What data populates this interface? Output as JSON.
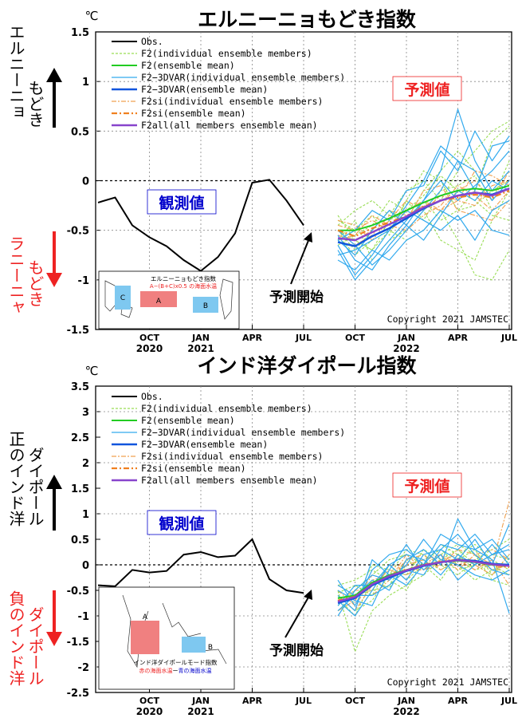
{
  "charts": [
    {
      "title": "エルニーニョもどき指数",
      "unit": "℃",
      "y_ticks": [
        "1.5",
        "1",
        "0.5",
        "0",
        "-0.5",
        "-1",
        "-1.5"
      ],
      "x_ticks": [
        {
          "label": "OCT",
          "year": "2020"
        },
        {
          "label": "JAN",
          "year": "2021"
        },
        {
          "label": "APR",
          "year": ""
        },
        {
          "label": "JUL",
          "year": ""
        },
        {
          "label": "OCT",
          "year": ""
        },
        {
          "label": "JAN",
          "year": "2022"
        },
        {
          "label": "APR",
          "year": ""
        },
        {
          "label": "JUL",
          "year": ""
        }
      ],
      "side_label_positive": "エルニーニョ もどき",
      "side_label_negative": "ラニーニャ もどき",
      "observed_label": "観測値",
      "forecast_label": "予測値",
      "forecast_start": "予測開始",
      "copyright": "Copyright 2021 JAMSTEC",
      "legend": [
        "Obs.",
        "F2(individual ensemble members)",
        "F2(ensemble mean)",
        "F2−3DVAR(individual ensemble members)",
        "F2−3DVAR(ensemble mean)",
        "F2si(individual ensemble members)",
        "F2si(ensemble mean)",
        "F2all(all members ensemble mean)"
      ],
      "inset": {
        "title": "エルニーニョもどき指数",
        "formula": "A−(B+C)x0.5 の海面水温",
        "box_labels": [
          "A",
          "B",
          "C"
        ]
      }
    },
    {
      "title": "インド洋ダイポール指数",
      "unit": "℃",
      "y_ticks": [
        "3.5",
        "3",
        "2.5",
        "2",
        "1.5",
        "1",
        "0.5",
        "0",
        "-0.5",
        "-1",
        "-1.5",
        "-2",
        "-2.5"
      ],
      "x_ticks": [
        {
          "label": "OCT",
          "year": "2020"
        },
        {
          "label": "JAN",
          "year": "2021"
        },
        {
          "label": "APR",
          "year": ""
        },
        {
          "label": "JUL",
          "year": ""
        },
        {
          "label": "OCT",
          "year": ""
        },
        {
          "label": "JAN",
          "year": "2022"
        },
        {
          "label": "APR",
          "year": ""
        },
        {
          "label": "JUL",
          "year": ""
        }
      ],
      "side_label_positive": "正のインド洋 ダイポール",
      "side_label_negative": "負のインド洋 ダイポール",
      "observed_label": "観測値",
      "forecast_label": "予測値",
      "forecast_start": "予測開始",
      "copyright": "Copyright 2021 JAMSTEC",
      "legend": [
        "Obs.",
        "F2(individual ensemble members)",
        "F2(ensemble mean)",
        "F2−3DVAR(individual ensemble members)",
        "F2−3DVAR(ensemble mean)",
        "F2si(individual ensemble members)",
        "F2si(ensemble mean)",
        "F2all(all members ensemble mean)"
      ],
      "inset": {
        "title": "インド洋ダイポールモード指数",
        "formula_red": "赤の海面水温",
        "formula_sep": "ー",
        "formula_blue": "青の海面水温",
        "box_labels": [
          "A",
          "B"
        ]
      }
    }
  ],
  "colors": {
    "obs": "#000000",
    "f2_member": "#99dd55",
    "f2_mean": "#22cc22",
    "dvar_member": "#33aaee",
    "dvar_mean": "#1155dd",
    "si_member": "#f0a050",
    "si_mean": "#f08020",
    "all_mean": "#8844cc",
    "grid": "#888888",
    "label_red": "#ee2222",
    "label_blue": "#0000cc"
  },
  "chart_data": [
    {
      "type": "line",
      "title": "エルニーニョもどき指数",
      "ylabel": "℃",
      "ylim": [
        -1.5,
        1.5
      ],
      "x_months": [
        "2020-07",
        "2020-08",
        "2020-09",
        "2020-10",
        "2020-11",
        "2020-12",
        "2021-01",
        "2021-02",
        "2021-03",
        "2021-04",
        "2021-05",
        "2021-06",
        "2021-07",
        "2021-08",
        "2021-09",
        "2021-10",
        "2021-11",
        "2021-12",
        "2022-01",
        "2022-02",
        "2022-03",
        "2022-04",
        "2022-05",
        "2022-06",
        "2022-07"
      ],
      "observed": {
        "name": "Obs.",
        "x": [
          "2020-07",
          "2020-08",
          "2020-09",
          "2020-10",
          "2020-11",
          "2020-12",
          "2021-01",
          "2021-02",
          "2021-03",
          "2021-04",
          "2021-05",
          "2021-06",
          "2021-07"
        ],
        "values": [
          -0.22,
          -0.17,
          -0.45,
          -0.57,
          -0.66,
          -0.8,
          -0.91,
          -0.77,
          -0.53,
          -0.02,
          0.01,
          -0.2,
          -0.45
        ]
      },
      "forecast_x": [
        "2021-09",
        "2021-10",
        "2021-11",
        "2021-12",
        "2022-01",
        "2022-02",
        "2022-03",
        "2022-04",
        "2022-05",
        "2022-06",
        "2022-07"
      ],
      "series": [
        {
          "name": "F2(ensemble mean)",
          "values": [
            -0.5,
            -0.5,
            -0.45,
            -0.38,
            -0.3,
            -0.22,
            -0.15,
            -0.1,
            -0.08,
            -0.1,
            -0.05
          ]
        },
        {
          "name": "F2−3DVAR(ensemble mean)",
          "values": [
            -0.62,
            -0.66,
            -0.56,
            -0.48,
            -0.38,
            -0.28,
            -0.2,
            -0.15,
            -0.12,
            -0.14,
            -0.08
          ]
        },
        {
          "name": "F2si(ensemble mean)",
          "values": [
            -0.5,
            -0.56,
            -0.48,
            -0.42,
            -0.36,
            -0.26,
            -0.2,
            -0.17,
            -0.14,
            -0.17,
            -0.1
          ]
        },
        {
          "name": "F2all(all members ensemble mean)",
          "values": [
            -0.58,
            -0.6,
            -0.52,
            -0.44,
            -0.36,
            -0.27,
            -0.2,
            -0.15,
            -0.12,
            -0.15,
            -0.08
          ]
        }
      ],
      "members_f2": [
        [
          -0.35,
          -0.6,
          -0.7,
          -0.5,
          -0.2,
          0.1,
          0.0,
          -0.3,
          -0.1,
          0.4,
          0.55
        ],
        [
          -0.6,
          -0.4,
          -0.8,
          -0.6,
          -0.5,
          -0.3,
          -0.6,
          -0.7,
          -0.8,
          -0.4,
          -0.1
        ],
        [
          -0.5,
          -0.7,
          -0.5,
          -0.3,
          -0.4,
          -0.1,
          0.1,
          0.3,
          0.1,
          -0.2,
          0.2
        ],
        [
          -0.45,
          -0.3,
          -0.2,
          -0.35,
          -0.1,
          0.0,
          -0.2,
          0.1,
          0.3,
          0.5,
          0.6
        ],
        [
          -0.55,
          -0.75,
          -0.6,
          -0.5,
          -0.6,
          -0.5,
          -0.3,
          -0.6,
          -0.95,
          -1.0,
          -0.7
        ],
        [
          -0.4,
          -0.5,
          -0.35,
          -0.55,
          -0.2,
          -0.4,
          -0.1,
          -0.05,
          0.05,
          -0.3,
          -0.2
        ],
        [
          -0.65,
          -0.55,
          -0.45,
          -0.2,
          -0.3,
          -0.2,
          -0.4,
          -0.3,
          -0.25,
          -0.1,
          0.0
        ],
        [
          -0.5,
          -0.6,
          -0.7,
          -0.4,
          -0.3,
          -0.15,
          0.05,
          -0.1,
          -0.2,
          -0.35,
          -0.4
        ]
      ],
      "members_dvar": [
        [
          -0.7,
          -1.0,
          -0.8,
          -0.6,
          -0.4,
          -0.2,
          0.1,
          0.72,
          0.2,
          -0.1,
          0.1
        ],
        [
          -0.6,
          -0.5,
          -0.3,
          -0.4,
          -0.1,
          -0.05,
          0.3,
          0.1,
          0.5,
          0.2,
          0.45
        ],
        [
          -0.8,
          -0.9,
          -0.7,
          -0.8,
          -0.6,
          -0.5,
          -0.3,
          -0.4,
          -0.3,
          -0.5,
          -0.55
        ],
        [
          -0.5,
          -0.65,
          -0.85,
          -0.7,
          -0.5,
          -0.3,
          -0.1,
          0.2,
          -0.1,
          0.35,
          0.4
        ],
        [
          -0.65,
          -0.95,
          -0.75,
          -0.5,
          -0.3,
          -0.4,
          -0.5,
          -0.35,
          -0.6,
          -0.3,
          -0.2
        ],
        [
          -0.75,
          -0.7,
          -0.6,
          -0.5,
          -0.25,
          0.0,
          0.35,
          0.2,
          0.1,
          -0.2,
          0.0
        ],
        [
          -0.55,
          -0.8,
          -0.9,
          -0.65,
          -0.45,
          -0.6,
          -0.35,
          -0.1,
          -0.2,
          0.0,
          -0.1
        ],
        [
          -0.6,
          -0.75,
          -0.5,
          -0.3,
          -0.45,
          -0.2,
          0.0,
          -0.2,
          -0.05,
          0.1,
          0.3
        ]
      ],
      "members_si": [
        [
          -0.45,
          -0.5,
          -0.4,
          -0.5,
          -0.3,
          -0.2,
          -0.3,
          -0.1,
          0.0,
          -0.2,
          0.1
        ],
        [
          -0.5,
          -0.65,
          -0.55,
          -0.35,
          -0.4,
          -0.1,
          -0.05,
          -0.3,
          -0.35,
          -0.4,
          -0.2
        ],
        [
          -0.4,
          -0.45,
          -0.6,
          -0.4,
          -0.2,
          -0.3,
          -0.15,
          -0.2,
          0.1,
          0.05,
          -0.05
        ],
        [
          -0.6,
          -0.55,
          -0.35,
          -0.45,
          -0.5,
          -0.35,
          -0.25,
          -0.05,
          -0.15,
          -0.3,
          -0.1
        ],
        [
          -0.55,
          -0.6,
          -0.5,
          -0.3,
          -0.35,
          -0.25,
          -0.3,
          -0.2,
          -0.25,
          -0.05,
          0.0
        ]
      ]
    },
    {
      "type": "line",
      "title": "インド洋ダイポール指数",
      "ylabel": "℃",
      "ylim": [
        -2.5,
        3.5
      ],
      "x_months": [
        "2020-07",
        "2020-08",
        "2020-09",
        "2020-10",
        "2020-11",
        "2020-12",
        "2021-01",
        "2021-02",
        "2021-03",
        "2021-04",
        "2021-05",
        "2021-06",
        "2021-07",
        "2021-08",
        "2021-09",
        "2021-10",
        "2021-11",
        "2021-12",
        "2022-01",
        "2022-02",
        "2022-03",
        "2022-04",
        "2022-05",
        "2022-06",
        "2022-07"
      ],
      "observed": {
        "name": "Obs.",
        "x": [
          "2020-07",
          "2020-08",
          "2020-09",
          "2020-10",
          "2020-11",
          "2020-12",
          "2021-01",
          "2021-02",
          "2021-03",
          "2021-04",
          "2021-05",
          "2021-06",
          "2021-07"
        ],
        "values": [
          -0.4,
          -0.42,
          -0.1,
          -0.15,
          -0.12,
          0.2,
          0.25,
          0.15,
          0.18,
          0.5,
          -0.28,
          -0.5,
          -0.55
        ]
      },
      "forecast_x": [
        "2021-09",
        "2021-10",
        "2021-11",
        "2021-12",
        "2022-01",
        "2022-02",
        "2022-03",
        "2022-04",
        "2022-05",
        "2022-06",
        "2022-07"
      ],
      "series": [
        {
          "name": "F2(ensemble mean)",
          "values": [
            -0.65,
            -0.6,
            -0.35,
            -0.2,
            -0.1,
            0.0,
            0.05,
            0.08,
            0.05,
            0.0,
            -0.02
          ]
        },
        {
          "name": "F2−3DVAR(ensemble mean)",
          "values": [
            -0.75,
            -0.65,
            -0.4,
            -0.25,
            -0.12,
            -0.02,
            0.05,
            0.1,
            0.08,
            0.02,
            0.0
          ]
        },
        {
          "name": "F2si(ensemble mean)",
          "values": [
            -0.7,
            -0.62,
            -0.38,
            -0.22,
            -0.1,
            0.0,
            0.06,
            0.1,
            0.06,
            0.0,
            -0.05
          ]
        },
        {
          "name": "F2all(all members ensemble mean)",
          "values": [
            -0.72,
            -0.63,
            -0.38,
            -0.22,
            -0.11,
            -0.01,
            0.05,
            0.09,
            0.06,
            0.01,
            -0.02
          ]
        }
      ],
      "members_f2": [
        [
          -0.5,
          -1.7,
          -0.9,
          -0.6,
          -0.4,
          -0.2,
          0.1,
          0.3,
          0.0,
          -0.2,
          0.1
        ],
        [
          -0.8,
          -0.5,
          -0.2,
          0.1,
          0.2,
          0.0,
          -0.3,
          0.2,
          0.4,
          0.1,
          -0.1
        ],
        [
          -0.6,
          -0.9,
          -0.7,
          -0.2,
          0.3,
          0.2,
          0.0,
          -0.2,
          0.1,
          0.3,
          0.5
        ],
        [
          -0.4,
          -0.3,
          -0.1,
          -0.3,
          -0.5,
          0.1,
          0.3,
          0.0,
          -0.3,
          -0.1,
          0.0
        ],
        [
          -0.7,
          -0.6,
          -0.5,
          -0.4,
          0.1,
          -0.1,
          0.2,
          0.4,
          0.2,
          -0.3,
          -0.4
        ],
        [
          -0.9,
          -0.7,
          0.0,
          -0.1,
          -0.2,
          0.3,
          0.1,
          -0.1,
          0.0,
          0.2,
          0.1
        ],
        [
          -0.55,
          -0.4,
          -0.6,
          0.0,
          -0.3,
          0.0,
          0.4,
          0.2,
          -0.1,
          0.0,
          -0.2
        ],
        [
          -0.65,
          -1.0,
          -0.3,
          -0.45,
          0.0,
          0.1,
          -0.1,
          0.1,
          0.3,
          -0.2,
          0.2
        ]
      ],
      "members_dvar": [
        [
          -0.3,
          -0.8,
          -0.1,
          0.2,
          0.3,
          0.0,
          0.6,
          0.4,
          0.3,
          0.5,
          0.1
        ],
        [
          -0.9,
          -0.6,
          -0.3,
          -0.5,
          0.1,
          0.3,
          0.0,
          0.9,
          0.3,
          0.1,
          -0.95
        ],
        [
          -0.7,
          -1.0,
          -0.5,
          0.0,
          -0.3,
          0.2,
          0.3,
          0.1,
          0.5,
          0.0,
          0.8
        ],
        [
          -0.5,
          -0.7,
          -0.8,
          -0.1,
          0.4,
          -0.1,
          0.2,
          -0.3,
          0.0,
          0.2,
          0.3
        ],
        [
          -1.0,
          -0.5,
          -0.2,
          -0.3,
          0.0,
          0.5,
          0.1,
          0.0,
          -0.2,
          -0.3,
          -0.1
        ],
        [
          -0.6,
          -0.9,
          0.1,
          -0.2,
          -0.4,
          0.0,
          0.4,
          0.3,
          0.6,
          0.2,
          0.4
        ],
        [
          -0.8,
          -0.4,
          -0.4,
          0.0,
          0.2,
          0.1,
          -0.2,
          0.2,
          0.0,
          0.4,
          0.0
        ],
        [
          -0.4,
          -0.6,
          -0.6,
          -0.4,
          -0.1,
          -0.2,
          0.3,
          0.6,
          0.2,
          -0.1,
          -0.2
        ]
      ],
      "members_si": [
        [
          -0.5,
          -0.8,
          -0.3,
          -0.2,
          0.0,
          0.1,
          0.2,
          0.0,
          0.1,
          -0.1,
          0.0
        ],
        [
          -0.7,
          -0.5,
          -0.5,
          0.0,
          -0.1,
          -0.1,
          0.0,
          0.3,
          0.2,
          0.0,
          1.25
        ],
        [
          -0.9,
          -0.7,
          -0.2,
          -0.3,
          0.1,
          0.2,
          -0.1,
          0.1,
          -0.1,
          0.1,
          -0.4
        ],
        [
          -0.6,
          -0.9,
          -0.4,
          -0.1,
          -0.2,
          0.0,
          0.2,
          -0.1,
          0.2,
          0.3,
          0.1
        ],
        [
          -0.4,
          -0.6,
          -0.6,
          -0.3,
          0.2,
          -0.1,
          0.1,
          0.2,
          0.0,
          -0.2,
          0.2
        ]
      ]
    }
  ]
}
